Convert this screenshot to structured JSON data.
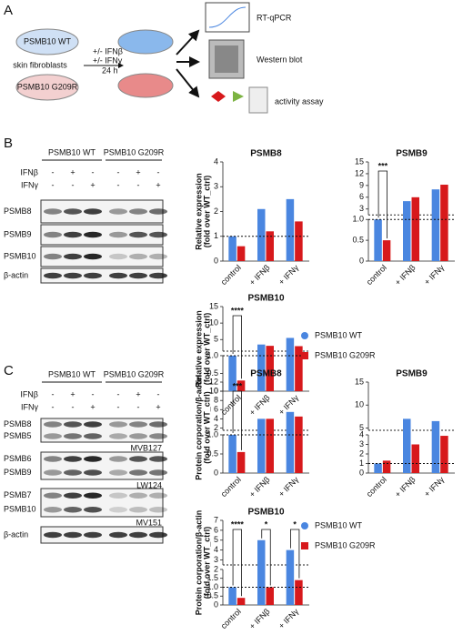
{
  "figure": {
    "panel_labels": [
      "A",
      "B",
      "C"
    ],
    "schematic": {
      "wt_dish": "PSMB10 WT",
      "cells": "skin fibroblasts",
      "mut_dish": "PSMB10 G209R",
      "treatments": [
        "+/- IFNβ",
        "+/- IFNγ",
        "24 h"
      ],
      "readouts": [
        "RT-qPCR",
        "Western blot",
        "activity assay"
      ]
    },
    "blot_b": {
      "groups": [
        "PSMB10 WT",
        "PSMB10 G209R"
      ],
      "rows": [
        {
          "label": "IFNβ",
          "signs": [
            "-",
            "+",
            "-",
            "-",
            "+",
            "-"
          ]
        },
        {
          "label": "IFNγ",
          "signs": [
            "-",
            "-",
            "+",
            "-",
            "-",
            "+"
          ]
        }
      ],
      "bands": [
        "PSMB8",
        "PSMB9",
        "PSMB10",
        "β-actin"
      ]
    },
    "blot_c": {
      "groups": [
        "PSMB10 WT",
        "PSMB10 G209R"
      ],
      "rows": [
        {
          "label": "IFNβ",
          "signs": [
            "-",
            "+",
            "-",
            "-",
            "+",
            "-"
          ]
        },
        {
          "label": "IFNγ",
          "signs": [
            "-",
            "-",
            "+",
            "-",
            "-",
            "+"
          ]
        }
      ],
      "blocks": [
        {
          "labels": [
            "PSMB8",
            "PSMB5"
          ],
          "probe": "MVB127"
        },
        {
          "labels": [
            "PSMB6",
            "PSMB9"
          ],
          "probe": "LW124"
        },
        {
          "labels": [
            "PSMB7",
            "PSMB10"
          ],
          "probe": "MV151"
        },
        {
          "labels": [
            "β-actin"
          ]
        }
      ]
    }
  },
  "chart_data": [
    {
      "type": "bar",
      "title": "PSMB8",
      "ylabel": [
        "Relative expression",
        "(fold over WT_ctrl)"
      ],
      "categories": [
        "control",
        "+ IFNβ",
        "+ IFNγ"
      ],
      "ylim": [
        0,
        4
      ],
      "yticks": [
        0,
        1,
        2,
        3,
        4
      ],
      "reference_line": 1,
      "series": [
        {
          "name": "PSMB10 WT",
          "color": "#4a86e0",
          "values": [
            1,
            2.1,
            2.5
          ]
        },
        {
          "name": "PSMB10 G209R",
          "color": "#d7191c",
          "values": [
            0.6,
            1.2,
            1.6
          ]
        }
      ]
    },
    {
      "type": "bar",
      "title": "PSMB9",
      "categories": [
        "control",
        "+ IFNβ",
        "+ IFNγ"
      ],
      "ylim_segments": [
        [
          0,
          1
        ],
        [
          1.5,
          15
        ]
      ],
      "yticks": [
        0,
        0.5,
        {
          "value": 1,
          "label": "1.0"
        },
        3,
        6,
        9,
        12,
        15
      ],
      "reference_line": 1,
      "significance": [
        {
          "category": "control",
          "label": "***"
        }
      ],
      "series": [
        {
          "name": "PSMB10 WT",
          "color": "#4a86e0",
          "values": [
            1,
            5,
            8
          ]
        },
        {
          "name": "PSMB10 G209R",
          "color": "#d7191c",
          "values": [
            0.5,
            6,
            9.2
          ]
        }
      ]
    },
    {
      "type": "bar",
      "title": "PSMB10",
      "ylabel": [
        "Relative expression",
        "(fold over WT_ctrl)"
      ],
      "categories": [
        "control",
        "+ IFNβ",
        "+ IFNγ"
      ],
      "ylim_segments": [
        [
          0,
          1
        ],
        [
          1.5,
          15
        ]
      ],
      "yticks": [
        0,
        0.5,
        {
          "value": 1,
          "label": "1.0"
        },
        5,
        10,
        15
      ],
      "reference_line": 1,
      "significance": [
        {
          "category": "control",
          "label": "****"
        }
      ],
      "legend": true,
      "series": [
        {
          "name": "PSMB10 WT",
          "color": "#4a86e0",
          "values": [
            1,
            3.5,
            5.5
          ]
        },
        {
          "name": "PSMB10 G209R",
          "color": "#d7191c",
          "values": [
            0.3,
            3.1,
            3
          ]
        }
      ]
    },
    {
      "type": "bar",
      "title": "PSMB8",
      "ylabel": [
        "Protein corporation/β-actin",
        "(fold over WT_ctrl)"
      ],
      "categories": [
        "control",
        "+ IFNβ",
        "+ IFNγ"
      ],
      "ylim_segments": [
        [
          0,
          1
        ],
        [
          1.5,
          12
        ]
      ],
      "yticks": [
        0,
        0.5,
        {
          "value": 1,
          "label": "1.0"
        },
        2,
        4,
        6,
        8,
        10,
        12
      ],
      "reference_line": 1,
      "significance": [
        {
          "category": "control",
          "label": "***"
        }
      ],
      "series": [
        {
          "name": "PSMB10 WT",
          "color": "#4a86e0",
          "values": [
            1,
            4,
            5.5
          ]
        },
        {
          "name": "PSMB10 G209R",
          "color": "#d7191c",
          "values": [
            0.55,
            4,
            4.5
          ]
        }
      ]
    },
    {
      "type": "bar",
      "title": "PSMB9",
      "categories": [
        "control",
        "+ IFNβ",
        "+ IFNγ"
      ],
      "ylim_segments": [
        [
          0,
          4
        ],
        [
          4.5,
          15
        ]
      ],
      "yticks": [
        0,
        1,
        2,
        3,
        4,
        5,
        10,
        15
      ],
      "reference_line": 1,
      "series": [
        {
          "name": "PSMB10 WT",
          "color": "#4a86e0",
          "values": [
            1,
            7,
            6.5
          ]
        },
        {
          "name": "PSMB10 G209R",
          "color": "#d7191c",
          "values": [
            1.3,
            3,
            3.9
          ]
        }
      ]
    },
    {
      "type": "bar",
      "title": "PSMB10",
      "ylabel": [
        "Protein corporation/β-actin",
        "(fold over WT_ctrl)"
      ],
      "categories": [
        "control",
        "+ IFNβ",
        "+ IFNγ"
      ],
      "ylim_segments": [
        [
          0,
          2
        ],
        [
          2.5,
          7
        ]
      ],
      "yticks": [
        0,
        0.5,
        {
          "value": 1,
          "label": "1.0"
        },
        1.5,
        2,
        3,
        4,
        5,
        6,
        7
      ],
      "reference_line": 1,
      "significance": [
        {
          "category": "control",
          "label": "****"
        },
        {
          "category": "+ IFNβ",
          "label": "*"
        },
        {
          "category": "+ IFNγ",
          "label": "*"
        }
      ],
      "legend": true,
      "series": [
        {
          "name": "PSMB10 WT",
          "color": "#4a86e0",
          "values": [
            1,
            5,
            4
          ]
        },
        {
          "name": "PSMB10 G209R",
          "color": "#d7191c",
          "values": [
            0.4,
            1,
            1.4
          ]
        }
      ]
    }
  ]
}
